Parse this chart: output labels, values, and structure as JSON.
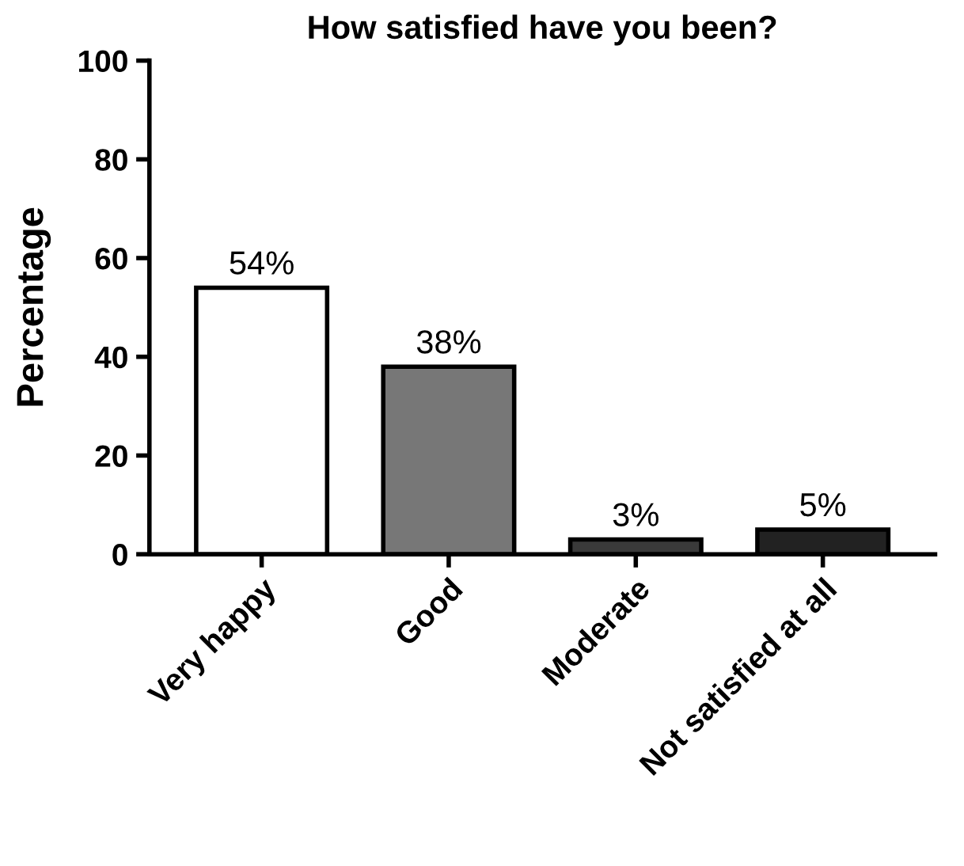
{
  "chart_data": {
    "type": "bar",
    "title": "How satisfied have you been?",
    "ylabel": "Percentage",
    "categories": [
      "Very happy",
      "Good",
      "Moderate",
      "Not satisfied at all"
    ],
    "values": [
      54,
      38,
      3,
      5
    ],
    "colors": [
      "#ffffff",
      "#777777",
      "#3a3a3a",
      "#222222"
    ],
    "value_labels": [
      "54%",
      "38%",
      "3%",
      "5%"
    ],
    "ylim": [
      0,
      100
    ],
    "yticks": [
      0,
      20,
      40,
      60,
      80,
      100
    ],
    "grid": false,
    "legend": false
  }
}
